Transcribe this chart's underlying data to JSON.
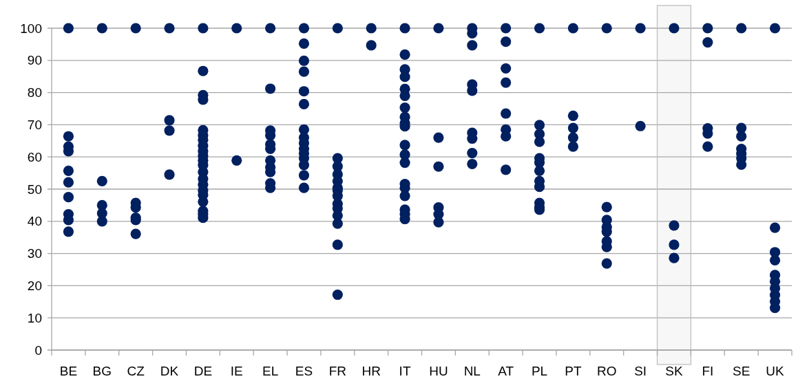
{
  "chart_data": {
    "type": "scatter",
    "categories": [
      "BE",
      "BG",
      "CZ",
      "DK",
      "DE",
      "IE",
      "EL",
      "ES",
      "FR",
      "HR",
      "IT",
      "HU",
      "NL",
      "AT",
      "PL",
      "PT",
      "RO",
      "SI",
      "SK",
      "FI",
      "SE",
      "UK"
    ],
    "ylim": [
      0,
      100
    ],
    "yticks": [
      0,
      10,
      20,
      30,
      40,
      50,
      60,
      70,
      80,
      90,
      100
    ],
    "grid": "y",
    "marker": "circle",
    "bands": [
      {
        "axis": "x",
        "from": "SK",
        "to": "SK",
        "color": "#bfbfbf"
      }
    ],
    "series": [
      {
        "color": "#002060",
        "x": [
          "BE",
          "BE",
          "BE",
          "BE",
          "BE",
          "BE",
          "BE",
          "BE",
          "BE",
          "BE",
          "BG",
          "BG",
          "BG",
          "BG",
          "BG",
          "CZ",
          "CZ",
          "CZ",
          "CZ",
          "CZ",
          "CZ",
          "DK",
          "DK",
          "DK",
          "DK",
          "DE",
          "DE",
          "DE",
          "DE",
          "DE",
          "DE",
          "DE",
          "DE",
          "DE",
          "DE",
          "DE",
          "DE",
          "DE",
          "DE",
          "DE",
          "DE",
          "DE",
          "DE",
          "DE",
          "DE",
          "DE",
          "IE",
          "IE",
          "EL",
          "EL",
          "EL",
          "EL",
          "EL",
          "EL",
          "EL",
          "EL",
          "EL",
          "EL",
          "EL",
          "ES",
          "ES",
          "ES",
          "ES",
          "ES",
          "ES",
          "ES",
          "ES",
          "ES",
          "ES",
          "ES",
          "ES",
          "ES",
          "ES",
          "ES",
          "FR",
          "FR",
          "FR",
          "FR",
          "FR",
          "FR",
          "FR",
          "FR",
          "FR",
          "FR",
          "FR",
          "FR",
          "FR",
          "FR",
          "HR",
          "HR",
          "IT",
          "IT",
          "IT",
          "IT",
          "IT",
          "IT",
          "IT",
          "IT",
          "IT",
          "IT",
          "IT",
          "IT",
          "IT",
          "IT",
          "IT",
          "IT",
          "IT",
          "IT",
          "IT",
          "HU",
          "HU",
          "HU",
          "HU",
          "HU",
          "HU",
          "NL",
          "NL",
          "NL",
          "NL",
          "NL",
          "NL",
          "NL",
          "NL",
          "NL",
          "AT",
          "AT",
          "AT",
          "AT",
          "AT",
          "AT",
          "AT",
          "AT",
          "PL",
          "PL",
          "PL",
          "PL",
          "PL",
          "PL",
          "PL",
          "PL",
          "PL",
          "PL",
          "PL",
          "PL",
          "PT",
          "PT",
          "PT",
          "PT",
          "PT",
          "RO",
          "RO",
          "RO",
          "RO",
          "RO",
          "RO",
          "RO",
          "RO",
          "SI",
          "SI",
          "SK",
          "SK",
          "SK",
          "SK",
          "FI",
          "FI",
          "FI",
          "FI",
          "FI",
          "SE",
          "SE",
          "SE",
          "SE",
          "SE",
          "SE",
          "SE",
          "UK",
          "UK",
          "UK",
          "UK",
          "UK",
          "UK",
          "UK",
          "UK",
          "UK",
          "UK"
        ],
        "values": [
          100,
          66.4,
          63.2,
          61.8,
          55.7,
          52.1,
          47.5,
          42.2,
          40.4,
          36.8,
          100,
          52.5,
          45,
          42.5,
          40,
          100,
          45.7,
          44.3,
          41.1,
          40.4,
          36.1,
          100,
          71.4,
          68.2,
          54.5,
          100,
          86.7,
          79.2,
          77.8,
          68.3,
          66.7,
          65.3,
          63.5,
          61.8,
          60.3,
          58.9,
          57.5,
          55.3,
          53.2,
          51.4,
          49.6,
          48.2,
          46.1,
          43.2,
          42.2,
          41.1,
          100,
          58.9,
          100,
          81.2,
          68.2,
          66.7,
          63.9,
          62.5,
          58.9,
          56.8,
          55.3,
          51.8,
          50.4,
          100,
          95.2,
          89.9,
          86.5,
          80.4,
          76.4,
          68.5,
          66,
          64.3,
          62.5,
          61.1,
          59.6,
          57.5,
          54.3,
          50.4,
          100,
          59.6,
          57.1,
          54.6,
          52.5,
          50.4,
          49.6,
          47.9,
          45.4,
          44,
          41.8,
          39.3,
          32.7,
          17.2,
          100,
          94.7,
          100,
          91.8,
          87.2,
          84.9,
          81.1,
          79,
          75.3,
          72.4,
          70.5,
          69.5,
          63.7,
          60.7,
          58.2,
          51.6,
          50.4,
          47.9,
          43.6,
          42.2,
          40.7,
          100,
          66,
          57,
          44.3,
          42.2,
          39.7,
          100,
          98.4,
          94.7,
          82.5,
          80.6,
          67.5,
          65.7,
          61.2,
          57.8,
          100,
          95.8,
          87.5,
          83.1,
          73.5,
          68.5,
          66.4,
          56,
          100,
          69.9,
          67.1,
          64.7,
          59.6,
          58.2,
          55.7,
          52.5,
          50.7,
          45.7,
          44.3,
          43.6,
          100,
          72.8,
          69,
          66,
          63.2,
          100,
          44.4,
          40.4,
          38.2,
          36.8,
          33.8,
          32,
          26.9,
          100,
          69.6,
          100,
          38.7,
          32.7,
          28.6,
          100,
          95.6,
          68.9,
          67.3,
          63.2,
          100,
          69,
          66.4,
          62.5,
          61,
          59.6,
          57.6,
          100,
          38,
          30.4,
          27.9,
          23.3,
          21.3,
          19.2,
          17.1,
          15.1,
          13.1
        ]
      }
    ]
  }
}
